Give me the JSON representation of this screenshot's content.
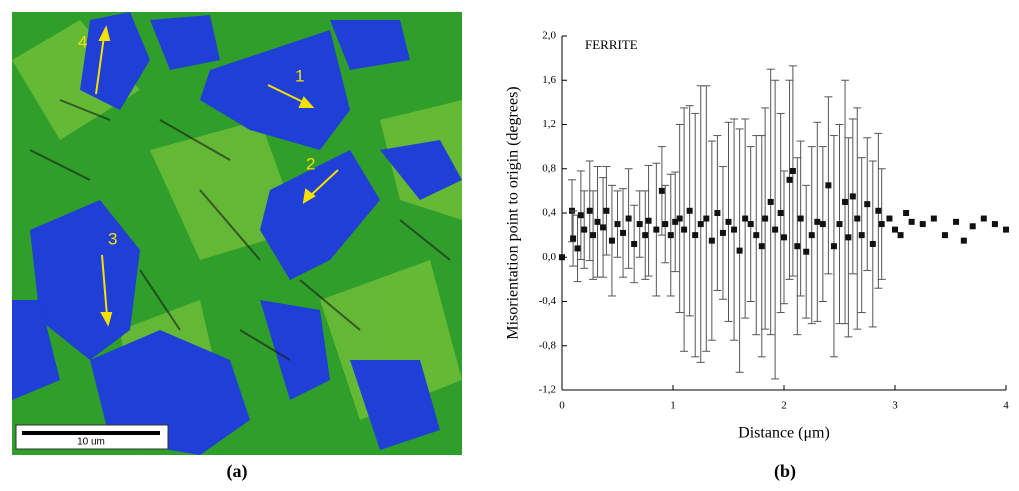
{
  "image_panel": {
    "labels": [
      "1",
      "2",
      "3",
      "4"
    ],
    "scale_bar": "10 um",
    "caption": "(a)"
  },
  "chart_data": {
    "type": "scatter",
    "caption": "(b)",
    "title": "FERRITE",
    "x_label": "Distance (μm)",
    "y_label": "Misorientation point to origin (degrees)",
    "color": "#111111",
    "x": [
      0.0,
      0.09,
      0.1,
      0.14,
      0.17,
      0.2,
      0.25,
      0.28,
      0.32,
      0.37,
      0.4,
      0.45,
      0.5,
      0.55,
      0.6,
      0.65,
      0.7,
      0.75,
      0.78,
      0.85,
      0.9,
      0.93,
      0.98,
      1.02,
      1.06,
      1.1,
      1.15,
      1.2,
      1.25,
      1.3,
      1.35,
      1.4,
      1.45,
      1.5,
      1.55,
      1.6,
      1.65,
      1.7,
      1.75,
      1.8,
      1.83,
      1.88,
      1.92,
      1.97,
      2.0,
      2.05,
      2.08,
      2.12,
      2.15,
      2.2,
      2.25,
      2.3,
      2.35,
      2.4,
      2.45,
      2.5,
      2.55,
      2.58,
      2.62,
      2.66,
      2.7,
      2.75,
      2.8,
      2.85,
      2.88,
      2.95,
      3.0,
      3.05,
      3.1,
      3.15,
      3.25,
      3.35,
      3.45,
      3.55,
      3.62,
      3.7,
      3.8,
      3.9,
      4.0
    ],
    "values": [
      0.0,
      0.42,
      0.17,
      0.08,
      0.38,
      0.25,
      0.42,
      0.2,
      0.32,
      0.27,
      0.42,
      0.15,
      0.3,
      0.22,
      0.35,
      0.12,
      0.3,
      0.2,
      0.33,
      0.25,
      0.6,
      0.3,
      0.2,
      0.32,
      0.35,
      0.25,
      0.42,
      0.2,
      0.3,
      0.35,
      0.15,
      0.4,
      0.22,
      0.32,
      0.25,
      0.06,
      0.35,
      0.3,
      0.2,
      0.1,
      0.35,
      0.5,
      0.25,
      0.4,
      0.18,
      0.7,
      0.78,
      0.1,
      0.35,
      0.05,
      0.2,
      0.32,
      0.3,
      0.65,
      0.1,
      0.3,
      0.5,
      0.18,
      0.55,
      0.35,
      0.2,
      0.48,
      0.12,
      0.42,
      0.3,
      0.35,
      0.25,
      0.2,
      0.4,
      0.32,
      0.3,
      0.35,
      0.2,
      0.32,
      0.15,
      0.28,
      0.35,
      0.3,
      0.25
    ],
    "errors": [
      null,
      0.28,
      0.25,
      0.3,
      0.4,
      0.35,
      0.45,
      0.4,
      0.5,
      0.45,
      0.4,
      0.5,
      0.3,
      0.4,
      0.45,
      0.35,
      0.3,
      0.4,
      0.5,
      0.6,
      0.4,
      0.35,
      0.55,
      0.45,
      0.85,
      1.1,
      0.95,
      1.1,
      1.25,
      1.2,
      0.9,
      0.7,
      0.6,
      0.9,
      1.0,
      1.1,
      0.9,
      0.7,
      0.9,
      1.0,
      1.0,
      1.2,
      1.35,
      0.9,
      0.6,
      0.9,
      0.95,
      0.8,
      0.7,
      0.6,
      0.8,
      0.9,
      0.7,
      0.8,
      1.0,
      0.9,
      1.1,
      0.9,
      0.7,
      1.0,
      0.7,
      0.6,
      0.75,
      0.7,
      0.5,
      null,
      null,
      null,
      null,
      null,
      null,
      null,
      null,
      null,
      null,
      null,
      null,
      null,
      null
    ],
    "xlim": [
      0,
      4
    ],
    "xticks": [
      0,
      1,
      2,
      3,
      4
    ],
    "ylim": [
      -1.2,
      2.0
    ],
    "yticks": [
      {
        "value": -1.2,
        "label": "-1,2"
      },
      {
        "value": -0.8,
        "label": "-0,8"
      },
      {
        "value": -0.4,
        "label": "-0,4"
      },
      {
        "value": 0,
        "label": "0,0"
      },
      {
        "value": 0.4,
        "label": "0,4"
      },
      {
        "value": 0.8,
        "label": "0,8"
      },
      {
        "value": 1.2,
        "label": "1,2"
      },
      {
        "value": 1.6,
        "label": "1,6"
      },
      {
        "value": 2.0,
        "label": "2,0"
      }
    ]
  }
}
